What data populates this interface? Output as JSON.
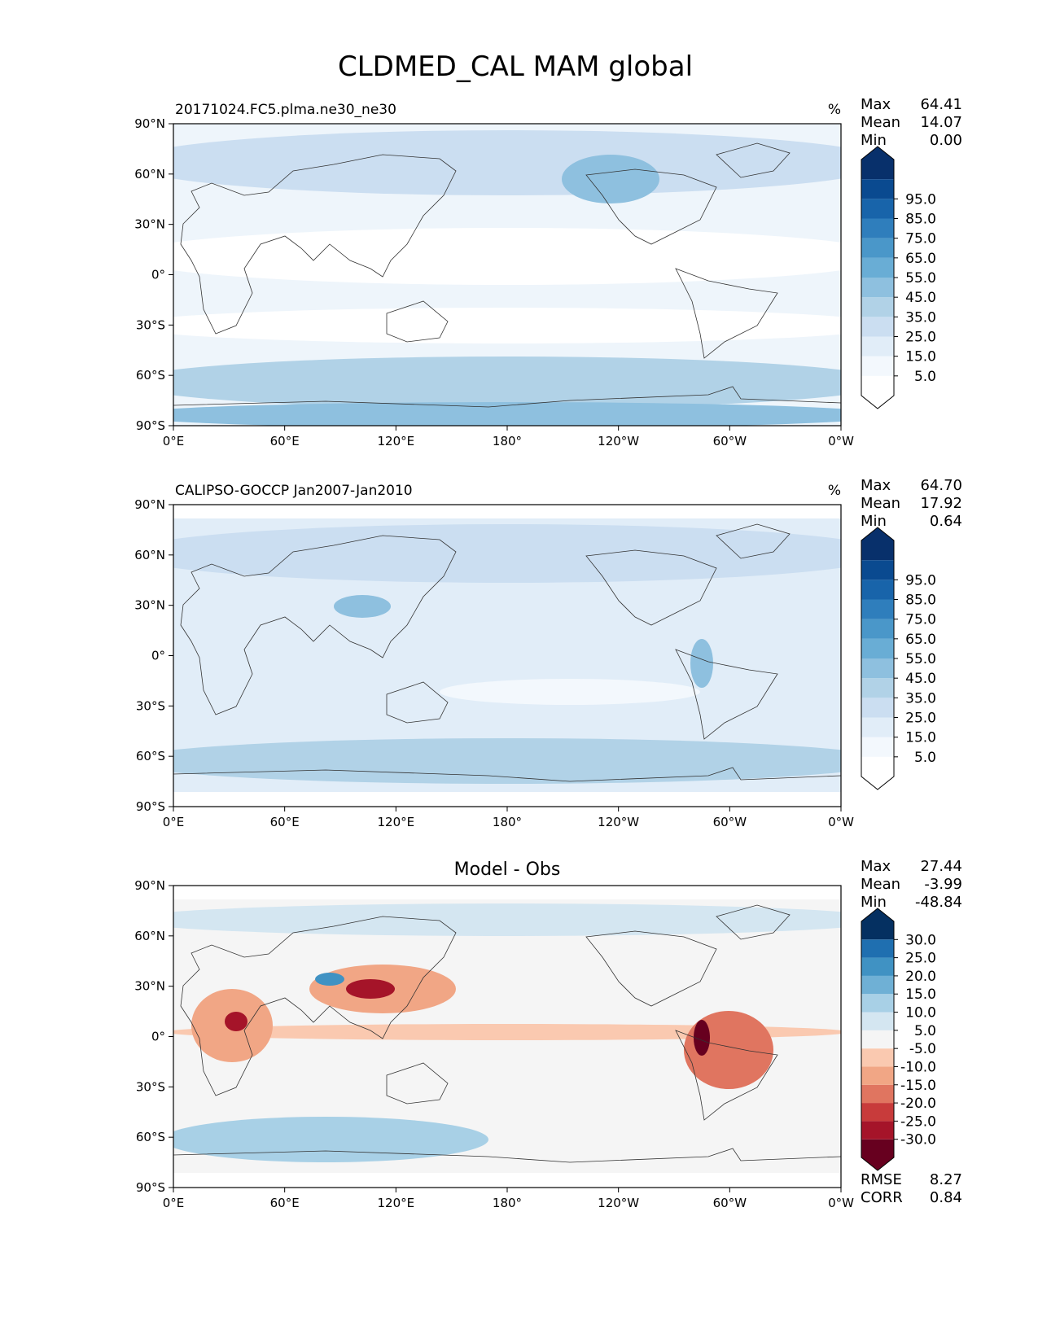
{
  "figure_title": "CLDMED_CAL MAM global",
  "chart_data": [
    {
      "type": "heatmap",
      "panel": "test",
      "title_left": "20171024.FC5.plma.ne30_ne30",
      "title_center": "",
      "units": "%",
      "stats": [
        {
          "label": "Max",
          "value": "64.41"
        },
        {
          "label": "Mean",
          "value": "14.07"
        },
        {
          "label": "Min",
          "value": "0.00"
        }
      ],
      "bottom_stats": [],
      "colormap": "Blues",
      "x_tick_labels": [
        "0°E",
        "60°E",
        "120°E",
        "180°",
        "120°W",
        "60°W",
        "0°W"
      ],
      "y_tick_labels": [
        "90°N",
        "60°N",
        "30°N",
        "0°",
        "30°S",
        "60°S",
        "90°S"
      ],
      "xlim": [
        0,
        360
      ],
      "ylim": [
        -90,
        90
      ],
      "colorbar_levels": [
        0,
        5,
        15,
        25,
        35,
        45,
        55,
        65,
        75,
        85,
        95,
        100
      ],
      "colorbar_labels": [
        "5.0",
        "15.0",
        "25.0",
        "35.0",
        "45.0",
        "55.0",
        "65.0",
        "75.0",
        "85.0",
        "95.0"
      ],
      "colorbar_colors": [
        "#ffffff",
        "#f3f8fd",
        "#e1edf8",
        "#cbdef1",
        "#b1d2e7",
        "#8ec0df",
        "#69add5",
        "#4a97c9",
        "#2f7ebc",
        "#1864aa",
        "#0a4a90",
        "#08306b"
      ]
    },
    {
      "type": "heatmap",
      "panel": "reference",
      "title_left": "CALIPSO-GOCCP Jan2007-Jan2010",
      "title_center": "",
      "units": "%",
      "stats": [
        {
          "label": "Max",
          "value": "64.70"
        },
        {
          "label": "Mean",
          "value": "17.92"
        },
        {
          "label": "Min",
          "value": "0.64"
        }
      ],
      "bottom_stats": [],
      "colormap": "Blues",
      "x_tick_labels": [
        "0°E",
        "60°E",
        "120°E",
        "180°",
        "120°W",
        "60°W",
        "0°W"
      ],
      "y_tick_labels": [
        "90°N",
        "60°N",
        "30°N",
        "0°",
        "30°S",
        "60°S",
        "90°S"
      ],
      "xlim": [
        0,
        360
      ],
      "ylim": [
        -90,
        90
      ],
      "colorbar_levels": [
        0,
        5,
        15,
        25,
        35,
        45,
        55,
        65,
        75,
        85,
        95,
        100
      ],
      "colorbar_labels": [
        "5.0",
        "15.0",
        "25.0",
        "35.0",
        "45.0",
        "55.0",
        "65.0",
        "75.0",
        "85.0",
        "95.0"
      ],
      "colorbar_colors": [
        "#ffffff",
        "#f3f8fd",
        "#e1edf8",
        "#cbdef1",
        "#b1d2e7",
        "#8ec0df",
        "#69add5",
        "#4a97c9",
        "#2f7ebc",
        "#1864aa",
        "#0a4a90",
        "#08306b"
      ]
    },
    {
      "type": "heatmap",
      "panel": "difference",
      "title_left": "",
      "title_center": "Model - Obs",
      "units": "",
      "stats": [
        {
          "label": "Max",
          "value": "27.44"
        },
        {
          "label": "Mean",
          "value": "-3.99"
        },
        {
          "label": "Min",
          "value": "-48.84"
        }
      ],
      "bottom_stats": [
        {
          "label": "RMSE",
          "value": "8.27"
        },
        {
          "label": "CORR",
          "value": "0.84"
        }
      ],
      "colormap": "RdBu",
      "x_tick_labels": [
        "0°E",
        "60°E",
        "120°E",
        "180°",
        "120°W",
        "60°W",
        "0°W"
      ],
      "y_tick_labels": [
        "90°N",
        "60°N",
        "30°N",
        "0°",
        "30°S",
        "60°S",
        "90°S"
      ],
      "xlim": [
        0,
        360
      ],
      "ylim": [
        -90,
        90
      ],
      "colorbar_levels": [
        -35,
        -30,
        -25,
        -20,
        -15,
        -10,
        -5,
        5,
        10,
        15,
        20,
        25,
        30,
        35
      ],
      "colorbar_labels": [
        "-30.0",
        "-25.0",
        "-20.0",
        "-15.0",
        "-10.0",
        "-5.0",
        "5.0",
        "10.0",
        "15.0",
        "20.0",
        "25.0",
        "30.0"
      ],
      "colorbar_colors": [
        "#67001f",
        "#a51429",
        "#c83b3b",
        "#e07560",
        "#f1a685",
        "#fac9b0",
        "#f5f5f5",
        "#d4e6f1",
        "#a8d0e6",
        "#6fb0d5",
        "#4092c3",
        "#1f6fb0",
        "#053061"
      ]
    }
  ]
}
